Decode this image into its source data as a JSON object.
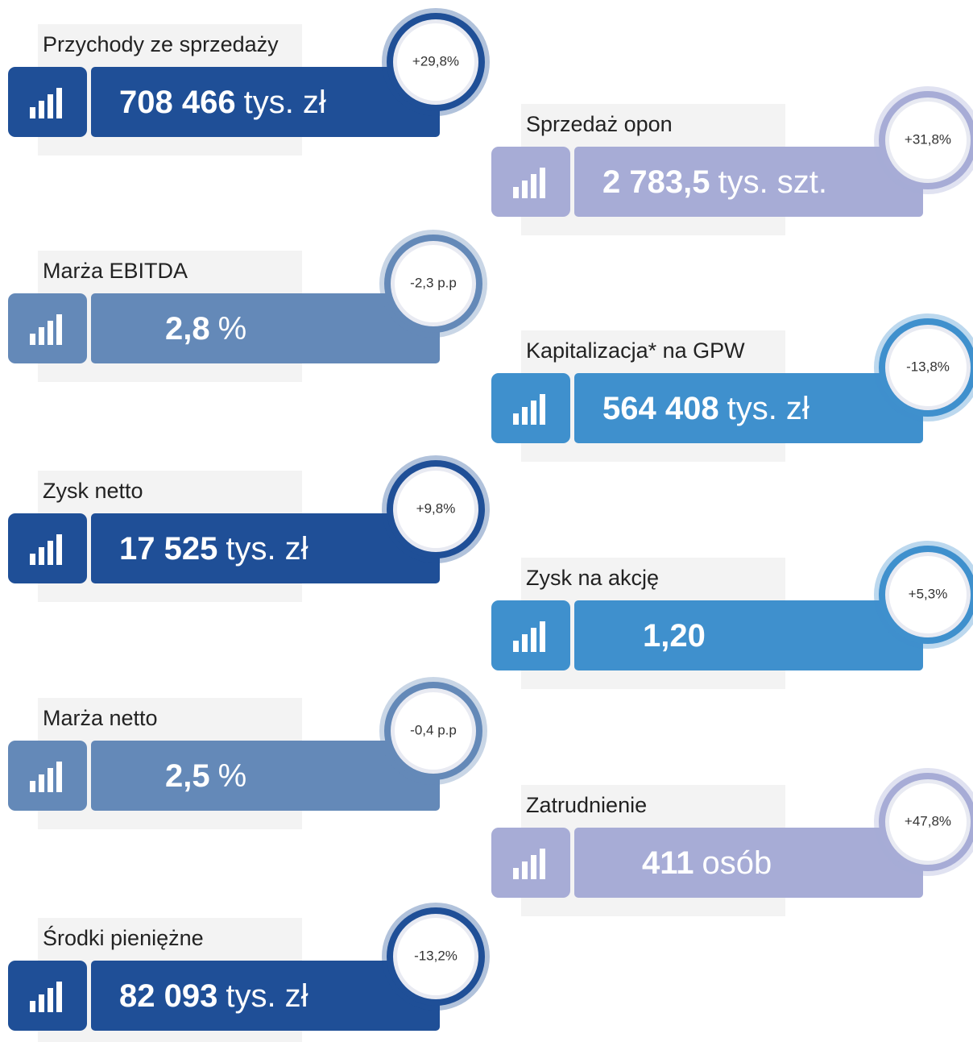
{
  "cards": [
    {
      "label": "Przychody ze sprzedaży",
      "value": "708 466",
      "unit": "tys. zł",
      "change": "+29,8%"
    },
    {
      "label": "Sprzedaż opon",
      "value": "2 783,5",
      "unit": "tys. szt.",
      "change": "+31,8%"
    },
    {
      "label": "Marża EBITDA",
      "value": "2,8",
      "unit": "%",
      "change": "-2,3 p.p"
    },
    {
      "label": "Kapitalizacja* na GPW",
      "value": "564 408",
      "unit": "tys. zł",
      "change": "-13,8%"
    },
    {
      "label": "Zysk netto",
      "value": "17 525",
      "unit": "tys. zł",
      "change": "+9,8%"
    },
    {
      "label": "Zysk na akcję",
      "value": "1,20",
      "change": "+5,3%"
    },
    {
      "label": "Marża netto",
      "value": "2,5",
      "unit": "%",
      "change": "-0,4 p.p"
    },
    {
      "label": "Zatrudnienie",
      "value": "411",
      "unit": "osób",
      "change": "+47,8%"
    },
    {
      "label": "Środki pieniężne",
      "value": "82 093",
      "unit": "tys. zł",
      "change": "-13,2%"
    }
  ]
}
